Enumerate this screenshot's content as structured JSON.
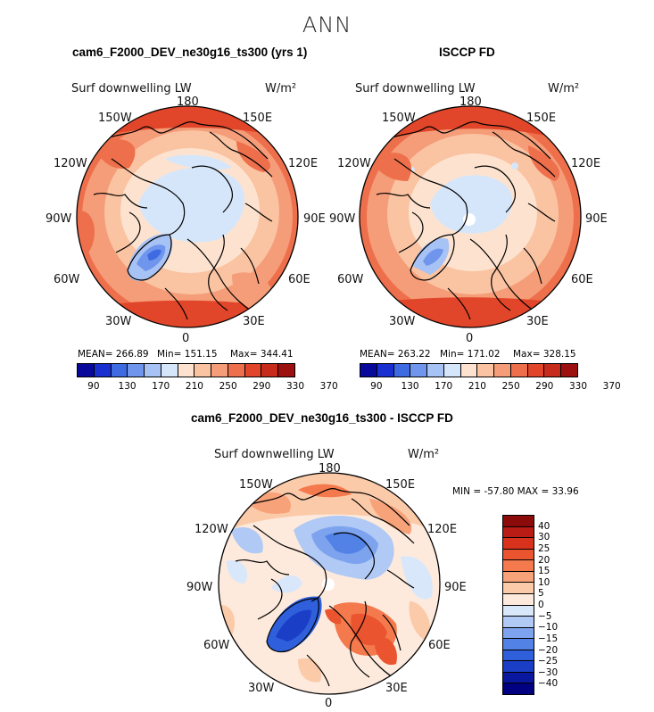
{
  "figure": {
    "title": "ANN"
  },
  "panels": [
    {
      "title": "cam6_F2000_DEV_ne30g16_ts300 (yrs 1)",
      "variable": "Surf downwelling LW",
      "units": "W/m²",
      "lon_labels": {
        "top": "180",
        "bottom": "0",
        "tl1": "150W",
        "tl2": "120W",
        "l": "90W",
        "bl2": "60W",
        "bl1": "30W",
        "tr1": "150E",
        "tr2": "120E",
        "r": "90E",
        "br2": "60E",
        "br1": "30E"
      },
      "stats": {
        "mean": "MEAN= 266.89",
        "min": "Min= 151.15",
        "max": "Max= 344.41"
      },
      "colorbar_ticks": [
        "90",
        "130",
        "170",
        "210",
        "250",
        "290",
        "330",
        "370"
      ]
    },
    {
      "title": "ISCCP FD",
      "variable": "Surf downwelling LW",
      "units": "W/m²",
      "lon_labels": {
        "top": "180",
        "bottom": "0",
        "tl1": "150W",
        "tl2": "120W",
        "l": "90W",
        "bl2": "60W",
        "bl1": "30W",
        "tr1": "150E",
        "tr2": "120E",
        "r": "90E",
        "br2": "60E",
        "br1": "30E"
      },
      "stats": {
        "mean": "MEAN= 263.22",
        "min": "Min= 171.02",
        "max": "Max= 328.15"
      },
      "colorbar_ticks": [
        "90",
        "130",
        "170",
        "210",
        "250",
        "290",
        "330",
        "370"
      ]
    },
    {
      "title": "cam6_F2000_DEV_ne30g16_ts300 - ISCCP FD",
      "variable": "Surf downwelling LW",
      "units": "W/m²",
      "lon_labels": {
        "top": "180",
        "bottom": "0",
        "tl1": "150W",
        "tl2": "120W",
        "l": "90W",
        "bl2": "60W",
        "bl1": "30W",
        "tr1": "150E",
        "tr2": "120E",
        "r": "90E",
        "br2": "60E",
        "br1": "30E"
      },
      "stats": {
        "minmax": "MIN = -57.80 MAX =   33.96"
      },
      "colorbar_ticks": [
        "40",
        "30",
        "25",
        "20",
        "15",
        "10",
        "5",
        "0",
        "−5",
        "−10",
        "−15",
        "−20",
        "−25",
        "−30",
        "−40"
      ]
    }
  ],
  "colors": {
    "abs_scale": [
      "#08089a",
      "#1a2fd0",
      "#3e6be2",
      "#6f95ec",
      "#a7c2f4",
      "#d6e6fa",
      "#fde3cf",
      "#fac3a2",
      "#f59c78",
      "#ee6f4c",
      "#e2462a",
      "#c72b1b",
      "#9c1010"
    ],
    "diff_scale": [
      "#8b0a0a",
      "#b81c14",
      "#d8321c",
      "#ea5530",
      "#f47a4e",
      "#f8a27a",
      "#fbcaa9",
      "#fdeadc",
      "#d9e7fb",
      "#b0c9f5",
      "#7ea3ee",
      "#5282e6",
      "#2f5fdb",
      "#1a3fc6",
      "#0a18a0",
      "#000080"
    ]
  }
}
